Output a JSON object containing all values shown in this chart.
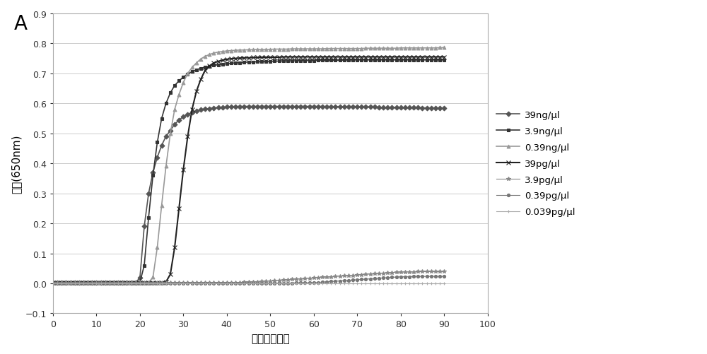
{
  "title_label": "A",
  "xlabel": "时间（分钟）",
  "ylabel": "浓度(650nm)",
  "xlim": [
    0,
    100
  ],
  "ylim": [
    -0.1,
    0.9
  ],
  "xticks": [
    0,
    10,
    20,
    30,
    40,
    50,
    60,
    70,
    80,
    90,
    100
  ],
  "yticks": [
    -0.1,
    0.0,
    0.1,
    0.2,
    0.3,
    0.4,
    0.5,
    0.6,
    0.7,
    0.8,
    0.9
  ],
  "bg_color": "#ffffff",
  "grid_color": "#cccccc",
  "series": [
    {
      "label": "39ng/μl",
      "color": "#555555",
      "marker": "D",
      "markersize": 3.5,
      "linewidth": 1.2,
      "x": [
        0,
        1,
        2,
        3,
        4,
        5,
        6,
        7,
        8,
        9,
        10,
        11,
        12,
        13,
        14,
        15,
        16,
        17,
        18,
        19,
        20,
        21,
        22,
        23,
        24,
        25,
        26,
        27,
        28,
        29,
        30,
        31,
        32,
        33,
        34,
        35,
        36,
        37,
        38,
        39,
        40,
        41,
        42,
        43,
        44,
        45,
        46,
        47,
        48,
        49,
        50,
        51,
        52,
        53,
        54,
        55,
        56,
        57,
        58,
        59,
        60,
        61,
        62,
        63,
        64,
        65,
        66,
        67,
        68,
        69,
        70,
        71,
        72,
        73,
        74,
        75,
        76,
        77,
        78,
        79,
        80,
        81,
        82,
        83,
        84,
        85,
        86,
        87,
        88,
        89,
        90
      ],
      "y": [
        0.003,
        0.003,
        0.003,
        0.003,
        0.003,
        0.003,
        0.003,
        0.003,
        0.003,
        0.003,
        0.003,
        0.003,
        0.003,
        0.003,
        0.003,
        0.003,
        0.003,
        0.003,
        0.003,
        0.003,
        0.018,
        0.19,
        0.3,
        0.37,
        0.42,
        0.46,
        0.49,
        0.51,
        0.53,
        0.545,
        0.555,
        0.563,
        0.57,
        0.575,
        0.579,
        0.581,
        0.583,
        0.585,
        0.586,
        0.587,
        0.588,
        0.589,
        0.589,
        0.589,
        0.59,
        0.59,
        0.59,
        0.59,
        0.59,
        0.59,
        0.59,
        0.59,
        0.59,
        0.59,
        0.59,
        0.59,
        0.59,
        0.59,
        0.59,
        0.59,
        0.59,
        0.59,
        0.59,
        0.589,
        0.589,
        0.589,
        0.589,
        0.589,
        0.589,
        0.589,
        0.589,
        0.588,
        0.588,
        0.588,
        0.588,
        0.587,
        0.587,
        0.587,
        0.587,
        0.587,
        0.587,
        0.586,
        0.586,
        0.586,
        0.586,
        0.585,
        0.585,
        0.585,
        0.585,
        0.584,
        0.584
      ]
    },
    {
      "label": "3.9ng/μl",
      "color": "#333333",
      "marker": "s",
      "markersize": 3.5,
      "linewidth": 1.2,
      "x": [
        0,
        1,
        2,
        3,
        4,
        5,
        6,
        7,
        8,
        9,
        10,
        11,
        12,
        13,
        14,
        15,
        16,
        17,
        18,
        19,
        20,
        21,
        22,
        23,
        24,
        25,
        26,
        27,
        28,
        29,
        30,
        31,
        32,
        33,
        34,
        35,
        36,
        37,
        38,
        39,
        40,
        41,
        42,
        43,
        44,
        45,
        46,
        47,
        48,
        49,
        50,
        51,
        52,
        53,
        54,
        55,
        56,
        57,
        58,
        59,
        60,
        61,
        62,
        63,
        64,
        65,
        66,
        67,
        68,
        69,
        70,
        71,
        72,
        73,
        74,
        75,
        76,
        77,
        78,
        79,
        80,
        81,
        82,
        83,
        84,
        85,
        86,
        87,
        88,
        89,
        90
      ],
      "y": [
        0.003,
        0.003,
        0.003,
        0.003,
        0.003,
        0.003,
        0.003,
        0.003,
        0.003,
        0.003,
        0.003,
        0.003,
        0.003,
        0.003,
        0.003,
        0.003,
        0.003,
        0.003,
        0.003,
        0.003,
        0.003,
        0.06,
        0.22,
        0.36,
        0.47,
        0.55,
        0.6,
        0.635,
        0.66,
        0.675,
        0.688,
        0.698,
        0.706,
        0.712,
        0.717,
        0.721,
        0.724,
        0.727,
        0.729,
        0.731,
        0.732,
        0.734,
        0.735,
        0.736,
        0.737,
        0.738,
        0.738,
        0.739,
        0.739,
        0.74,
        0.74,
        0.741,
        0.741,
        0.742,
        0.742,
        0.742,
        0.742,
        0.743,
        0.743,
        0.743,
        0.743,
        0.744,
        0.744,
        0.744,
        0.744,
        0.744,
        0.744,
        0.744,
        0.745,
        0.745,
        0.745,
        0.745,
        0.745,
        0.745,
        0.745,
        0.745,
        0.745,
        0.745,
        0.745,
        0.745,
        0.745,
        0.745,
        0.745,
        0.745,
        0.745,
        0.745,
        0.745,
        0.745,
        0.745,
        0.745,
        0.745
      ]
    },
    {
      "label": "0.39ng/μl",
      "color": "#999999",
      "marker": "^",
      "markersize": 3.5,
      "linewidth": 1.2,
      "x": [
        0,
        1,
        2,
        3,
        4,
        5,
        6,
        7,
        8,
        9,
        10,
        11,
        12,
        13,
        14,
        15,
        16,
        17,
        18,
        19,
        20,
        21,
        22,
        23,
        24,
        25,
        26,
        27,
        28,
        29,
        30,
        31,
        32,
        33,
        34,
        35,
        36,
        37,
        38,
        39,
        40,
        41,
        42,
        43,
        44,
        45,
        46,
        47,
        48,
        49,
        50,
        51,
        52,
        53,
        54,
        55,
        56,
        57,
        58,
        59,
        60,
        61,
        62,
        63,
        64,
        65,
        66,
        67,
        68,
        69,
        70,
        71,
        72,
        73,
        74,
        75,
        76,
        77,
        78,
        79,
        80,
        81,
        82,
        83,
        84,
        85,
        86,
        87,
        88,
        89,
        90
      ],
      "y": [
        0.003,
        0.003,
        0.003,
        0.003,
        0.003,
        0.003,
        0.003,
        0.003,
        0.003,
        0.003,
        0.003,
        0.003,
        0.003,
        0.003,
        0.003,
        0.003,
        0.003,
        0.003,
        0.003,
        0.003,
        0.003,
        0.003,
        0.003,
        0.02,
        0.12,
        0.26,
        0.39,
        0.5,
        0.58,
        0.63,
        0.67,
        0.7,
        0.72,
        0.735,
        0.748,
        0.757,
        0.763,
        0.768,
        0.771,
        0.773,
        0.775,
        0.776,
        0.777,
        0.778,
        0.778,
        0.779,
        0.779,
        0.78,
        0.78,
        0.78,
        0.78,
        0.781,
        0.781,
        0.781,
        0.781,
        0.782,
        0.782,
        0.782,
        0.782,
        0.782,
        0.782,
        0.782,
        0.782,
        0.783,
        0.783,
        0.783,
        0.783,
        0.783,
        0.783,
        0.783,
        0.783,
        0.783,
        0.784,
        0.784,
        0.784,
        0.784,
        0.784,
        0.784,
        0.784,
        0.784,
        0.785,
        0.785,
        0.785,
        0.785,
        0.785,
        0.785,
        0.785,
        0.785,
        0.785,
        0.786,
        0.786
      ]
    },
    {
      "label": "39pg/μl",
      "color": "#222222",
      "marker": "x",
      "markersize": 4,
      "linewidth": 1.5,
      "x": [
        0,
        1,
        2,
        3,
        4,
        5,
        6,
        7,
        8,
        9,
        10,
        11,
        12,
        13,
        14,
        15,
        16,
        17,
        18,
        19,
        20,
        21,
        22,
        23,
        24,
        25,
        26,
        27,
        28,
        29,
        30,
        31,
        32,
        33,
        34,
        35,
        36,
        37,
        38,
        39,
        40,
        41,
        42,
        43,
        44,
        45,
        46,
        47,
        48,
        49,
        50,
        51,
        52,
        53,
        54,
        55,
        56,
        57,
        58,
        59,
        60,
        61,
        62,
        63,
        64,
        65,
        66,
        67,
        68,
        69,
        70,
        71,
        72,
        73,
        74,
        75,
        76,
        77,
        78,
        79,
        80,
        81,
        82,
        83,
        84,
        85,
        86,
        87,
        88,
        89,
        90
      ],
      "y": [
        0.003,
        0.003,
        0.003,
        0.003,
        0.003,
        0.003,
        0.003,
        0.003,
        0.003,
        0.003,
        0.003,
        0.003,
        0.003,
        0.003,
        0.003,
        0.003,
        0.003,
        0.003,
        0.003,
        0.003,
        0.003,
        0.003,
        0.003,
        0.003,
        0.003,
        0.003,
        0.005,
        0.03,
        0.12,
        0.25,
        0.38,
        0.49,
        0.58,
        0.64,
        0.68,
        0.71,
        0.725,
        0.735,
        0.74,
        0.744,
        0.747,
        0.749,
        0.75,
        0.751,
        0.752,
        0.752,
        0.753,
        0.753,
        0.754,
        0.754,
        0.754,
        0.754,
        0.754,
        0.755,
        0.755,
        0.755,
        0.755,
        0.755,
        0.755,
        0.755,
        0.755,
        0.755,
        0.755,
        0.755,
        0.755,
        0.755,
        0.755,
        0.755,
        0.755,
        0.755,
        0.755,
        0.755,
        0.755,
        0.755,
        0.755,
        0.755,
        0.755,
        0.755,
        0.755,
        0.755,
        0.755,
        0.755,
        0.755,
        0.755,
        0.755,
        0.755,
        0.755,
        0.755,
        0.755,
        0.755,
        0.755
      ]
    },
    {
      "label": "3.9pg/μl",
      "color": "#888888",
      "marker": "*",
      "markersize": 4,
      "linewidth": 0.8,
      "x": [
        0,
        1,
        2,
        3,
        4,
        5,
        6,
        7,
        8,
        9,
        10,
        11,
        12,
        13,
        14,
        15,
        16,
        17,
        18,
        19,
        20,
        21,
        22,
        23,
        24,
        25,
        26,
        27,
        28,
        29,
        30,
        31,
        32,
        33,
        34,
        35,
        36,
        37,
        38,
        39,
        40,
        41,
        42,
        43,
        44,
        45,
        46,
        47,
        48,
        49,
        50,
        51,
        52,
        53,
        54,
        55,
        56,
        57,
        58,
        59,
        60,
        61,
        62,
        63,
        64,
        65,
        66,
        67,
        68,
        69,
        70,
        71,
        72,
        73,
        74,
        75,
        76,
        77,
        78,
        79,
        80,
        81,
        82,
        83,
        84,
        85,
        86,
        87,
        88,
        89,
        90
      ],
      "y": [
        0.002,
        0.002,
        0.002,
        0.002,
        0.002,
        0.002,
        0.002,
        0.002,
        0.002,
        0.002,
        0.002,
        0.002,
        0.002,
        0.002,
        0.002,
        0.002,
        0.002,
        0.002,
        0.002,
        0.002,
        0.002,
        0.002,
        0.002,
        0.002,
        0.002,
        0.002,
        0.002,
        0.002,
        0.002,
        0.002,
        0.002,
        0.002,
        0.002,
        0.002,
        0.002,
        0.002,
        0.002,
        0.002,
        0.002,
        0.002,
        0.003,
        0.003,
        0.003,
        0.003,
        0.004,
        0.004,
        0.005,
        0.005,
        0.006,
        0.007,
        0.008,
        0.009,
        0.01,
        0.011,
        0.012,
        0.013,
        0.014,
        0.015,
        0.016,
        0.017,
        0.018,
        0.019,
        0.02,
        0.021,
        0.022,
        0.023,
        0.024,
        0.025,
        0.026,
        0.027,
        0.028,
        0.029,
        0.03,
        0.031,
        0.032,
        0.033,
        0.034,
        0.035,
        0.036,
        0.037,
        0.037,
        0.038,
        0.038,
        0.038,
        0.039,
        0.039,
        0.039,
        0.039,
        0.039,
        0.039,
        0.039
      ]
    },
    {
      "label": "0.39pg/μl",
      "color": "#777777",
      "marker": "o",
      "markersize": 3,
      "linewidth": 0.8,
      "x": [
        0,
        1,
        2,
        3,
        4,
        5,
        6,
        7,
        8,
        9,
        10,
        11,
        12,
        13,
        14,
        15,
        16,
        17,
        18,
        19,
        20,
        21,
        22,
        23,
        24,
        25,
        26,
        27,
        28,
        29,
        30,
        31,
        32,
        33,
        34,
        35,
        36,
        37,
        38,
        39,
        40,
        41,
        42,
        43,
        44,
        45,
        46,
        47,
        48,
        49,
        50,
        51,
        52,
        53,
        54,
        55,
        56,
        57,
        58,
        59,
        60,
        61,
        62,
        63,
        64,
        65,
        66,
        67,
        68,
        69,
        70,
        71,
        72,
        73,
        74,
        75,
        76,
        77,
        78,
        79,
        80,
        81,
        82,
        83,
        84,
        85,
        86,
        87,
        88,
        89,
        90
      ],
      "y": [
        0.001,
        0.001,
        0.001,
        0.001,
        0.001,
        0.001,
        0.001,
        0.001,
        0.001,
        0.001,
        0.001,
        0.001,
        0.001,
        0.001,
        0.001,
        0.001,
        0.001,
        0.001,
        0.001,
        0.001,
        0.001,
        0.001,
        0.001,
        0.001,
        0.001,
        0.001,
        0.001,
        0.001,
        0.001,
        0.001,
        0.001,
        0.001,
        0.001,
        0.001,
        0.001,
        0.001,
        0.001,
        0.001,
        0.001,
        0.001,
        0.001,
        0.001,
        0.001,
        0.001,
        0.001,
        0.001,
        0.001,
        0.001,
        0.001,
        0.001,
        0.001,
        0.001,
        0.001,
        0.001,
        0.001,
        0.001,
        0.002,
        0.002,
        0.002,
        0.002,
        0.003,
        0.003,
        0.004,
        0.005,
        0.006,
        0.007,
        0.008,
        0.009,
        0.01,
        0.011,
        0.012,
        0.013,
        0.014,
        0.015,
        0.016,
        0.017,
        0.018,
        0.019,
        0.02,
        0.021,
        0.022,
        0.022,
        0.022,
        0.023,
        0.023,
        0.023,
        0.023,
        0.023,
        0.023,
        0.023,
        0.023
      ]
    },
    {
      "label": "0.039pg/μl",
      "color": "#aaaaaa",
      "marker": "+",
      "markersize": 3,
      "linewidth": 0.8,
      "x": [
        0,
        1,
        2,
        3,
        4,
        5,
        6,
        7,
        8,
        9,
        10,
        11,
        12,
        13,
        14,
        15,
        16,
        17,
        18,
        19,
        20,
        21,
        22,
        23,
        24,
        25,
        26,
        27,
        28,
        29,
        30,
        31,
        32,
        33,
        34,
        35,
        36,
        37,
        38,
        39,
        40,
        41,
        42,
        43,
        44,
        45,
        46,
        47,
        48,
        49,
        50,
        51,
        52,
        53,
        54,
        55,
        56,
        57,
        58,
        59,
        60,
        61,
        62,
        63,
        64,
        65,
        66,
        67,
        68,
        69,
        70,
        71,
        72,
        73,
        74,
        75,
        76,
        77,
        78,
        79,
        80,
        81,
        82,
        83,
        84,
        85,
        86,
        87,
        88,
        89,
        90
      ],
      "y": [
        0.001,
        0.001,
        0.001,
        0.001,
        0.001,
        0.001,
        0.001,
        0.001,
        0.001,
        0.001,
        0.001,
        0.001,
        0.001,
        0.001,
        0.001,
        0.001,
        0.001,
        0.001,
        0.001,
        0.001,
        0.001,
        0.001,
        0.001,
        0.001,
        0.001,
        0.001,
        0.001,
        0.001,
        0.001,
        0.001,
        0.001,
        0.001,
        0.001,
        0.001,
        0.001,
        0.001,
        0.001,
        0.001,
        0.001,
        0.001,
        0.001,
        0.001,
        0.001,
        0.001,
        0.001,
        0.001,
        0.001,
        0.001,
        0.001,
        0.001,
        0.001,
        0.001,
        0.001,
        0.001,
        0.001,
        0.001,
        0.001,
        0.001,
        0.001,
        0.001,
        0.001,
        0.001,
        0.001,
        0.001,
        0.001,
        0.001,
        0.001,
        0.001,
        0.001,
        0.001,
        0.001,
        0.001,
        0.001,
        0.001,
        0.001,
        0.001,
        0.001,
        0.001,
        0.001,
        0.001,
        0.001,
        0.001,
        0.001,
        0.001,
        0.001,
        0.001,
        0.001,
        0.001,
        0.001,
        0.001,
        0.001
      ]
    }
  ]
}
